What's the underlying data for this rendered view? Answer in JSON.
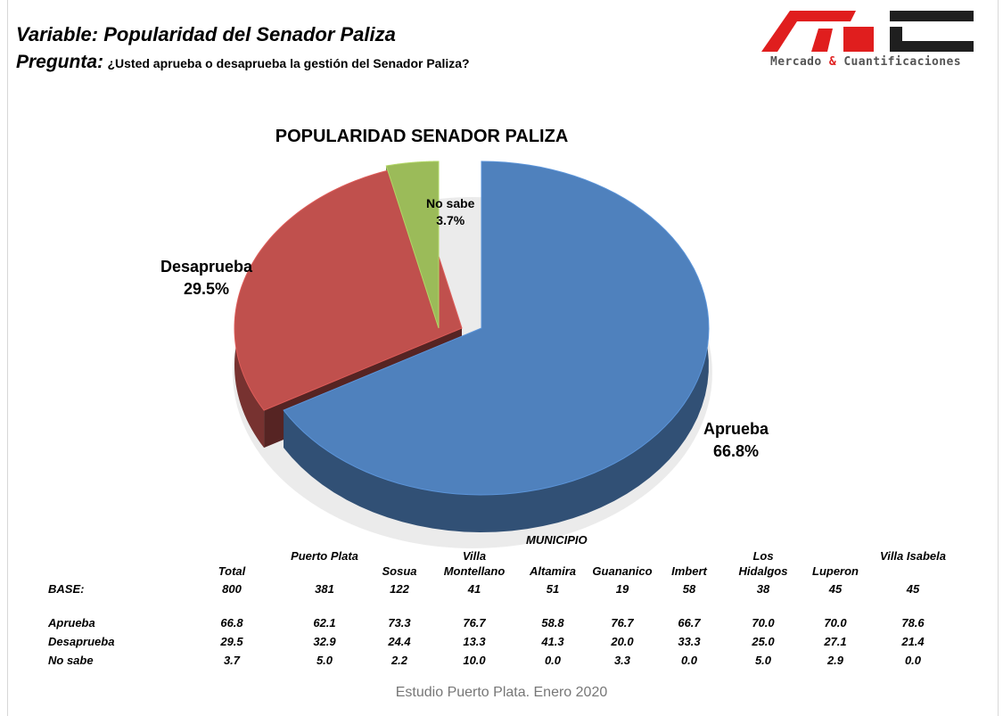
{
  "header": {
    "variable": "Variable: Popularidad del Senador Paliza",
    "question_label": "Pregunta",
    "question_colon": ":",
    "question_text": "¿Usted aprueba o desaprueba la gestión del Senador Paliza?"
  },
  "logo": {
    "text_left": "Mercado ",
    "text_amp": "&",
    "text_right": " Cuantificaciones",
    "colors": {
      "red": "#e01e1e",
      "dark": "#1f1f1f"
    }
  },
  "chart_data": {
    "type": "pie",
    "title": "POPULARIDAD SENADOR PALIZA",
    "slices": [
      {
        "label": "Aprueba",
        "value": 66.8,
        "display": "66.8%",
        "color": "#4f81bd"
      },
      {
        "label": "Desaprueba",
        "value": 29.5,
        "display": "29.5%",
        "color": "#c0504d"
      },
      {
        "label": "No sabe",
        "value": 3.7,
        "display": "3.7%",
        "color": "#9bbb59"
      }
    ],
    "style": "3d-exploded"
  },
  "table": {
    "group_header": "MUNICIPIO",
    "base_label": "BASE:",
    "columns": [
      {
        "name": "Total",
        "base": "800",
        "aprueba": "66.8",
        "desaprueba": "29.5",
        "nosabe": "3.7"
      },
      {
        "name": "Puerto Plata",
        "base": "381",
        "aprueba": "62.1",
        "desaprueba": "32.9",
        "nosabe": "5.0"
      },
      {
        "name": "Sosua",
        "base": "122",
        "aprueba": "73.3",
        "desaprueba": "24.4",
        "nosabe": "2.2"
      },
      {
        "name": "Villa Montellano",
        "base": "41",
        "aprueba": "76.7",
        "desaprueba": "13.3",
        "nosabe": "10.0"
      },
      {
        "name": "Altamira",
        "base": "51",
        "aprueba": "58.8",
        "desaprueba": "41.3",
        "nosabe": "0.0"
      },
      {
        "name": "Guananico",
        "base": "19",
        "aprueba": "76.7",
        "desaprueba": "20.0",
        "nosabe": "3.3"
      },
      {
        "name": "Imbert",
        "base": "58",
        "aprueba": "66.7",
        "desaprueba": "33.3",
        "nosabe": "0.0"
      },
      {
        "name": "Los Hidalgos",
        "base": "38",
        "aprueba": "70.0",
        "desaprueba": "25.0",
        "nosabe": "5.0"
      },
      {
        "name": "Luperon",
        "base": "45",
        "aprueba": "70.0",
        "desaprueba": "27.1",
        "nosabe": "2.9"
      },
      {
        "name": "Villa Isabela",
        "base": "45",
        "aprueba": "78.6",
        "desaprueba": "21.4",
        "nosabe": "0.0"
      }
    ],
    "rows": [
      {
        "key": "aprueba",
        "label": "Aprueba"
      },
      {
        "key": "desaprueba",
        "label": "Desaprueba"
      },
      {
        "key": "nosabe",
        "label": "No sabe"
      }
    ]
  },
  "footer": "Estudio Puerto Plata. Enero 2020"
}
